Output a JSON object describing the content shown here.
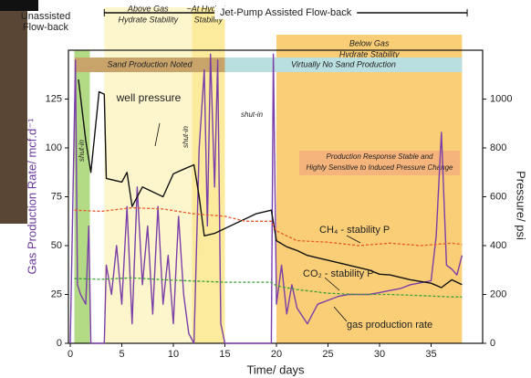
{
  "chart_data": {
    "type": "line",
    "xlabel": "Time/ days",
    "ylabel": "Gas Production Rate/ mcf.d⁻¹",
    "y2label": "Pressure/ psi",
    "xlim": [
      0,
      40
    ],
    "xticks": [
      0,
      5,
      10,
      15,
      20,
      25,
      30,
      35
    ],
    "ylim": [
      0,
      150
    ],
    "yticks": [
      0,
      25,
      50,
      75,
      100,
      125
    ],
    "y2lim": [
      0,
      1200
    ],
    "y2ticks": [
      0,
      200,
      400,
      600,
      800,
      1000
    ],
    "regions": [
      {
        "x": [
          0.4,
          1.9
        ],
        "color": "#a6d36f",
        "label": [
          "Unassisted",
          "Flow-back"
        ]
      },
      {
        "x": [
          3.3,
          11.8
        ],
        "color": "#fdf5c4",
        "label": [
          "Above Gas",
          "Hydrate Stability"
        ]
      },
      {
        "x": [
          11.8,
          15
        ],
        "color": "#fbe88c",
        "label": [
          "~At Hydrate",
          "Stability"
        ]
      },
      {
        "x": [
          20,
          38
        ],
        "color": "#f8c65e",
        "label": [
          "Below Gas",
          "Hydrate Stability"
        ]
      }
    ],
    "bands": [
      {
        "x": [
          0.4,
          15
        ],
        "color": "#c9a46a",
        "label": "Sand Production Noted"
      },
      {
        "x": [
          15,
          38
        ],
        "color": "#b9dfe0",
        "label": "Virtually No Sand Production"
      }
    ],
    "span": {
      "x": [
        3.3,
        38.5
      ],
      "label": "Jet-Pump Assisted Flow-back"
    },
    "annotations": [
      "shut-in",
      "shut-in",
      "shut-in"
    ],
    "note": [
      "Production Response Stable and",
      "Highly Sensitive to Induced Pressure Change"
    ],
    "series": [
      {
        "name": "gas production rate",
        "color": "#7b3fa8",
        "axis": "y",
        "linestyle": "solid",
        "x": [
          0,
          0.5,
          0.7,
          1,
          1.5,
          1.8,
          2,
          3.3,
          3.5,
          4,
          4.5,
          5,
          5.5,
          6,
          6.5,
          7,
          7.5,
          8,
          8.5,
          9,
          9.5,
          10,
          10.5,
          11,
          11.5,
          12,
          12.5,
          13,
          13.3,
          13.6,
          14,
          14.3,
          14.6,
          15,
          19.5,
          19.7,
          20,
          20.5,
          21,
          21.5,
          22,
          23,
          24,
          25,
          26,
          27,
          28,
          29,
          30,
          31,
          32,
          33,
          34,
          35,
          35.5,
          36,
          36.5,
          37,
          37.5,
          38
        ],
        "values": [
          0,
          145,
          30,
          25,
          20,
          60,
          0,
          0,
          40,
          25,
          50,
          20,
          70,
          10,
          80,
          30,
          60,
          15,
          70,
          20,
          45,
          10,
          65,
          25,
          5,
          0,
          100,
          140,
          60,
          148,
          80,
          145,
          10,
          0,
          0,
          148,
          20,
          40,
          15,
          30,
          18,
          10,
          20,
          22,
          24,
          25,
          25,
          25,
          26,
          27,
          28,
          30,
          31,
          32,
          55,
          108,
          40,
          38,
          35,
          45
        ]
      },
      {
        "name": "well pressure",
        "color": "#111111",
        "axis": "y2",
        "linestyle": "solid",
        "x": [
          0.8,
          1.5,
          2,
          2.8,
          3.3,
          3.5,
          5,
          5.5,
          6,
          7,
          8,
          9,
          10,
          11,
          12,
          12.5,
          13,
          14,
          15,
          16,
          17,
          18,
          19.5,
          20,
          21,
          22,
          23,
          24,
          25,
          27,
          29,
          30,
          31,
          33,
          35,
          36,
          37,
          38
        ],
        "values": [
          1080,
          830,
          700,
          1030,
          1020,
          675,
          660,
          700,
          560,
          640,
          620,
          600,
          694,
          713,
          731,
          600,
          440,
          450,
          470,
          490,
          510,
          530,
          545,
          420,
          395,
          380,
          360,
          350,
          340,
          320,
          300,
          283,
          280,
          260,
          246,
          228,
          260,
          240
        ]
      },
      {
        "name": "CH₄ - stability P",
        "color": "#e8582a",
        "axis": "y2",
        "linestyle": "dashed",
        "x": [
          0.4,
          3,
          6,
          9,
          12,
          15,
          17,
          19.5,
          20,
          22,
          25,
          28,
          31,
          34,
          37,
          38
        ],
        "values": [
          545,
          540,
          555,
          550,
          530,
          520,
          500,
          500,
          460,
          420,
          414,
          400,
          410,
          400,
          410,
          405
        ]
      },
      {
        "name": "CO₂ - stability P",
        "color": "#3aa035",
        "axis": "y2",
        "linestyle": "dashed",
        "x": [
          0.4,
          3,
          6,
          9,
          12,
          15,
          17,
          19.5,
          20,
          22,
          25,
          28,
          31,
          34,
          37,
          38
        ],
        "values": [
          265,
          262,
          268,
          260,
          255,
          250,
          250,
          250,
          235,
          220,
          205,
          200,
          200,
          195,
          190,
          190
        ]
      }
    ]
  }
}
